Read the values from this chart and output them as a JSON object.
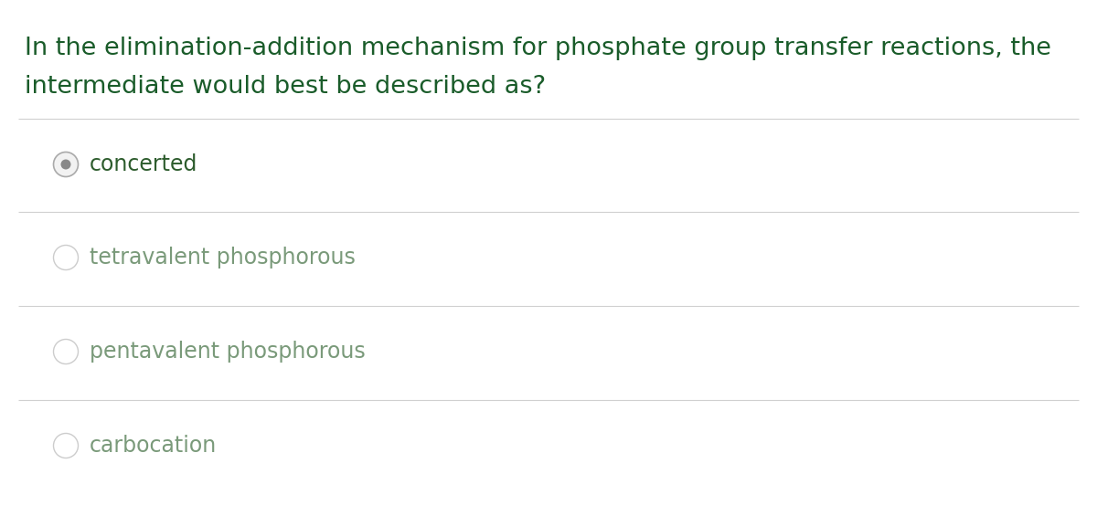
{
  "question_line1": "In the elimination-addition mechanism for phosphate group transfer reactions, the",
  "question_line2": "intermediate would best be described as?",
  "question_color": "#1a5c2a",
  "question_fontsize": 19.5,
  "options": [
    {
      "text": "concerted",
      "selected": true
    },
    {
      "text": "tetravalent phosphorous",
      "selected": false
    },
    {
      "text": "pentavalent phosphorous",
      "selected": false
    },
    {
      "text": "carbocation",
      "selected": false
    }
  ],
  "option_fontsize": 17,
  "divider_color": "#d0d0d0",
  "background_color": "#ffffff",
  "radio_selected_outer_color": "#aaaaaa",
  "radio_selected_inner_color": "#888888",
  "radio_unselected_color": "#cccccc",
  "option_text_selected_color": "#2d5c2d",
  "option_text_unselected_color": "#7a9a7a",
  "fig_width": 12.0,
  "fig_height": 5.65,
  "dpi": 100
}
